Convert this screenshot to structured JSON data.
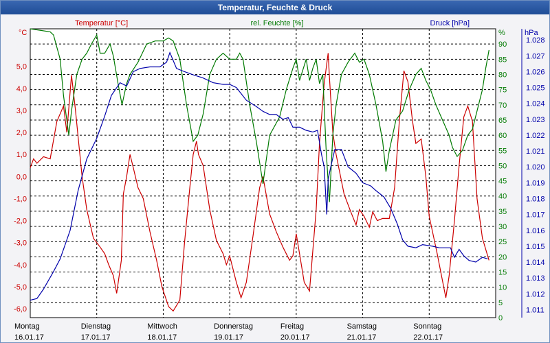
{
  "window": {
    "title": "Temperatur, Feuchte & Druck"
  },
  "colors": {
    "temperature": "#cc0000",
    "humidity": "#007a00",
    "pressure": "#0000aa",
    "grid": "#000000",
    "plot_bg": "#ffffff",
    "title_bg": "#2a5aa6"
  },
  "chart_data": {
    "type": "line",
    "title": "Temperatur, Feuchte & Druck",
    "grid": true,
    "x": {
      "range": [
        0,
        7
      ],
      "ticks": [
        {
          "day": "Montag",
          "date": "16.01.17",
          "pos": 0
        },
        {
          "day": "Dienstag",
          "date": "17.01.17",
          "pos": 1
        },
        {
          "day": "Mittwoch",
          "date": "18.01.17",
          "pos": 2
        },
        {
          "day": "Donnerstag",
          "date": "19.01.17",
          "pos": 3
        },
        {
          "day": "Freitag",
          "date": "20.01.17",
          "pos": 4
        },
        {
          "day": "Samstag",
          "date": "21.01.17",
          "pos": 5
        },
        {
          "day": "Sonntag",
          "date": "22.01.17",
          "pos": 6
        }
      ]
    },
    "axes": {
      "temperature": {
        "label": "Temperatur [°C]",
        "unit": "°C",
        "range": [
          -6.4,
          6.7
        ],
        "ticks": [
          "5,0",
          "4,0",
          "3,0",
          "2,0",
          "1,0",
          "0,0",
          "-1,0",
          "-2,0",
          "-3,0",
          "-4,0",
          "-5,0",
          "-6,0"
        ],
        "tick_values": [
          5,
          4,
          3,
          2,
          1,
          0,
          -1,
          -2,
          -3,
          -4,
          -5,
          -6
        ]
      },
      "humidity": {
        "label": "rel. Feuchte [%]",
        "unit": "%",
        "range": [
          0,
          95
        ],
        "ticks": [
          "90",
          "85",
          "80",
          "75",
          "70",
          "65",
          "60",
          "55",
          "50",
          "45",
          "40",
          "35",
          "30",
          "25",
          "20",
          "15",
          "10",
          "5",
          "0"
        ],
        "tick_values": [
          90,
          85,
          80,
          75,
          70,
          65,
          60,
          55,
          50,
          45,
          40,
          35,
          30,
          25,
          20,
          15,
          10,
          5,
          0
        ]
      },
      "pressure": {
        "label": "Druck [hPa]",
        "unit": "hPa",
        "range": [
          1.0105,
          1.0287
        ],
        "ticks": [
          "1.028",
          "1.027",
          "1.026",
          "1.025",
          "1.024",
          "1.023",
          "1.022",
          "1.021",
          "1.020",
          "1.019",
          "1.018",
          "1.017",
          "1.016",
          "1.015",
          "1.014",
          "1.013",
          "1.012",
          "1.011"
        ],
        "tick_values": [
          1.028,
          1.027,
          1.026,
          1.025,
          1.024,
          1.023,
          1.022,
          1.021,
          1.02,
          1.019,
          1.018,
          1.017,
          1.016,
          1.015,
          1.014,
          1.013,
          1.012,
          1.011
        ]
      }
    },
    "series": [
      {
        "name": "Temperatur [°C]",
        "axis": "temperature",
        "color": "#cc0000",
        "points": [
          [
            0,
            0.4
          ],
          [
            0.05,
            0.8
          ],
          [
            0.1,
            0.6
          ],
          [
            0.2,
            0.9
          ],
          [
            0.3,
            0.8
          ],
          [
            0.4,
            2.5
          ],
          [
            0.5,
            3.2
          ],
          [
            0.55,
            2.0
          ],
          [
            0.62,
            4.6
          ],
          [
            0.68,
            3.0
          ],
          [
            0.72,
            1.8
          ],
          [
            0.78,
            0.0
          ],
          [
            0.85,
            -1.5
          ],
          [
            0.95,
            -2.8
          ],
          [
            1.05,
            -3.2
          ],
          [
            1.12,
            -3.5
          ],
          [
            1.18,
            -4.0
          ],
          [
            1.25,
            -4.5
          ],
          [
            1.3,
            -5.3
          ],
          [
            1.37,
            -3.8
          ],
          [
            1.4,
            -0.8
          ],
          [
            1.45,
            0.0
          ],
          [
            1.5,
            1.0
          ],
          [
            1.55,
            0.4
          ],
          [
            1.62,
            -0.5
          ],
          [
            1.7,
            -1.0
          ],
          [
            1.8,
            -2.5
          ],
          [
            1.9,
            -3.8
          ],
          [
            1.98,
            -5.0
          ],
          [
            2.08,
            -5.9
          ],
          [
            2.15,
            -6.1
          ],
          [
            2.25,
            -5.6
          ],
          [
            2.32,
            -3.0
          ],
          [
            2.4,
            -0.5
          ],
          [
            2.45,
            1.0
          ],
          [
            2.5,
            1.6
          ],
          [
            2.53,
            1.0
          ],
          [
            2.6,
            0.5
          ],
          [
            2.7,
            -1.5
          ],
          [
            2.8,
            -2.9
          ],
          [
            2.9,
            -3.5
          ],
          [
            2.95,
            -4.0
          ],
          [
            3.0,
            -3.6
          ],
          [
            3.1,
            -4.8
          ],
          [
            3.17,
            -5.5
          ],
          [
            3.25,
            -4.8
          ],
          [
            3.35,
            -2.7
          ],
          [
            3.45,
            -0.5
          ],
          [
            3.5,
            0.0
          ],
          [
            3.6,
            -1.7
          ],
          [
            3.7,
            -2.5
          ],
          [
            3.8,
            -3.2
          ],
          [
            3.9,
            -3.8
          ],
          [
            3.95,
            -3.6
          ],
          [
            4.0,
            -2.6
          ],
          [
            4.05,
            -3.5
          ],
          [
            4.12,
            -4.8
          ],
          [
            4.2,
            -5.2
          ],
          [
            4.3,
            -1.5
          ],
          [
            4.35,
            1.5
          ],
          [
            4.42,
            4.2
          ],
          [
            4.48,
            5.6
          ],
          [
            4.5,
            4.5
          ],
          [
            4.55,
            2.0
          ],
          [
            4.6,
            1.0
          ],
          [
            4.72,
            -0.8
          ],
          [
            4.82,
            -1.6
          ],
          [
            4.9,
            -2.2
          ],
          [
            4.95,
            -1.5
          ],
          [
            5.02,
            -1.8
          ],
          [
            5.1,
            -2.3
          ],
          [
            5.15,
            -1.6
          ],
          [
            5.22,
            -2.0
          ],
          [
            5.3,
            -1.9
          ],
          [
            5.4,
            -1.9
          ],
          [
            5.48,
            -0.5
          ],
          [
            5.55,
            2.5
          ],
          [
            5.62,
            4.8
          ],
          [
            5.68,
            4.3
          ],
          [
            5.75,
            2.5
          ],
          [
            5.8,
            1.5
          ],
          [
            5.88,
            1.7
          ],
          [
            5.95,
            0.0
          ],
          [
            6.0,
            -1.8
          ],
          [
            6.12,
            -3.5
          ],
          [
            6.25,
            -5.5
          ],
          [
            6.3,
            -4.5
          ],
          [
            6.38,
            -2.0
          ],
          [
            6.45,
            0.5
          ],
          [
            6.52,
            2.7
          ],
          [
            6.58,
            3.2
          ],
          [
            6.65,
            2.5
          ],
          [
            6.72,
            -1.0
          ],
          [
            6.8,
            -2.8
          ],
          [
            6.85,
            -3.3
          ],
          [
            6.9,
            -3.8
          ]
        ]
      },
      {
        "name": "rel. Feuchte [%]",
        "axis": "humidity",
        "color": "#007a00",
        "points": [
          [
            0,
            95
          ],
          [
            0.3,
            94
          ],
          [
            0.35,
            93
          ],
          [
            0.45,
            85
          ],
          [
            0.5,
            73
          ],
          [
            0.58,
            60
          ],
          [
            0.62,
            68
          ],
          [
            0.7,
            80
          ],
          [
            0.78,
            85
          ],
          [
            0.85,
            87
          ],
          [
            0.92,
            90
          ],
          [
            1.0,
            93
          ],
          [
            1.05,
            87
          ],
          [
            1.12,
            87
          ],
          [
            1.2,
            90
          ],
          [
            1.25,
            86
          ],
          [
            1.32,
            77
          ],
          [
            1.38,
            70
          ],
          [
            1.45,
            77
          ],
          [
            1.5,
            80
          ],
          [
            1.62,
            84
          ],
          [
            1.75,
            90
          ],
          [
            1.88,
            91
          ],
          [
            2.0,
            91
          ],
          [
            2.08,
            92
          ],
          [
            2.15,
            91
          ],
          [
            2.25,
            85
          ],
          [
            2.35,
            70
          ],
          [
            2.45,
            58
          ],
          [
            2.52,
            60
          ],
          [
            2.6,
            67
          ],
          [
            2.7,
            80
          ],
          [
            2.8,
            85
          ],
          [
            2.9,
            87
          ],
          [
            3.0,
            85
          ],
          [
            3.1,
            85
          ],
          [
            3.15,
            87
          ],
          [
            3.2,
            85
          ],
          [
            3.3,
            70
          ],
          [
            3.4,
            58
          ],
          [
            3.5,
            44
          ],
          [
            3.6,
            60
          ],
          [
            3.75,
            66
          ],
          [
            3.85,
            75
          ],
          [
            3.95,
            82
          ],
          [
            4.0,
            85
          ],
          [
            4.05,
            78
          ],
          [
            4.15,
            85
          ],
          [
            4.2,
            78
          ],
          [
            4.25,
            82
          ],
          [
            4.3,
            85
          ],
          [
            4.35,
            77
          ],
          [
            4.4,
            80
          ],
          [
            4.45,
            55
          ],
          [
            4.5,
            38
          ],
          [
            4.55,
            60
          ],
          [
            4.6,
            70
          ],
          [
            4.68,
            80
          ],
          [
            4.78,
            84
          ],
          [
            4.88,
            87
          ],
          [
            4.95,
            84
          ],
          [
            5.02,
            85
          ],
          [
            5.1,
            80
          ],
          [
            5.2,
            70
          ],
          [
            5.3,
            58
          ],
          [
            5.35,
            48
          ],
          [
            5.4,
            55
          ],
          [
            5.5,
            65
          ],
          [
            5.6,
            68
          ],
          [
            5.7,
            75
          ],
          [
            5.8,
            80
          ],
          [
            5.88,
            82
          ],
          [
            5.95,
            78
          ],
          [
            6.02,
            75
          ],
          [
            6.1,
            70
          ],
          [
            6.2,
            65
          ],
          [
            6.3,
            60
          ],
          [
            6.35,
            56
          ],
          [
            6.42,
            53
          ],
          [
            6.5,
            55
          ],
          [
            6.58,
            60
          ],
          [
            6.65,
            62
          ],
          [
            6.72,
            68
          ],
          [
            6.8,
            75
          ],
          [
            6.85,
            82
          ],
          [
            6.9,
            88
          ]
        ]
      },
      {
        "name": "Druck [hPa]",
        "axis": "pressure",
        "color": "#0000aa",
        "points": [
          [
            0,
            1.0116
          ],
          [
            0.1,
            1.0117
          ],
          [
            0.2,
            1.0123
          ],
          [
            0.35,
            1.0134
          ],
          [
            0.45,
            1.0142
          ],
          [
            0.6,
            1.016
          ],
          [
            0.72,
            1.0185
          ],
          [
            0.85,
            1.0205
          ],
          [
            1.0,
            1.0218
          ],
          [
            1.12,
            1.0232
          ],
          [
            1.22,
            1.0245
          ],
          [
            1.35,
            1.0253
          ],
          [
            1.45,
            1.0251
          ],
          [
            1.55,
            1.026
          ],
          [
            1.65,
            1.0262
          ],
          [
            1.8,
            1.0263
          ],
          [
            1.95,
            1.0263
          ],
          [
            2.05,
            1.0266
          ],
          [
            2.1,
            1.0272
          ],
          [
            2.2,
            1.0262
          ],
          [
            2.32,
            1.026
          ],
          [
            2.45,
            1.0258
          ],
          [
            2.6,
            1.0256
          ],
          [
            2.75,
            1.0253
          ],
          [
            2.9,
            1.0252
          ],
          [
            3.0,
            1.0252
          ],
          [
            3.1,
            1.025
          ],
          [
            3.25,
            1.0242
          ],
          [
            3.4,
            1.0238
          ],
          [
            3.5,
            1.0235
          ],
          [
            3.6,
            1.0233
          ],
          [
            3.7,
            1.0233
          ],
          [
            3.8,
            1.023
          ],
          [
            3.88,
            1.0231
          ],
          [
            3.95,
            1.0225
          ],
          [
            4.05,
            1.0225
          ],
          [
            4.15,
            1.0223
          ],
          [
            4.25,
            1.0222
          ],
          [
            4.32,
            1.0223
          ],
          [
            4.38,
            1.0208
          ],
          [
            4.42,
            1.02
          ],
          [
            4.46,
            1.017
          ],
          [
            4.48,
            1.0192
          ],
          [
            4.52,
            1.02
          ],
          [
            4.58,
            1.0211
          ],
          [
            4.68,
            1.0211
          ],
          [
            4.78,
            1.02
          ],
          [
            4.9,
            1.0196
          ],
          [
            5.0,
            1.019
          ],
          [
            5.12,
            1.0188
          ],
          [
            5.2,
            1.0185
          ],
          [
            5.32,
            1.0181
          ],
          [
            5.42,
            1.0174
          ],
          [
            5.52,
            1.0164
          ],
          [
            5.6,
            1.0154
          ],
          [
            5.68,
            1.015
          ],
          [
            5.8,
            1.0149
          ],
          [
            5.9,
            1.0151
          ],
          [
            6.05,
            1.015
          ],
          [
            6.15,
            1.0149
          ],
          [
            6.25,
            1.0149
          ],
          [
            6.32,
            1.0149
          ],
          [
            6.38,
            1.0143
          ],
          [
            6.45,
            1.0148
          ],
          [
            6.52,
            1.0144
          ],
          [
            6.6,
            1.0141
          ],
          [
            6.7,
            1.014
          ],
          [
            6.8,
            1.0143
          ],
          [
            6.88,
            1.0142
          ]
        ]
      }
    ]
  }
}
